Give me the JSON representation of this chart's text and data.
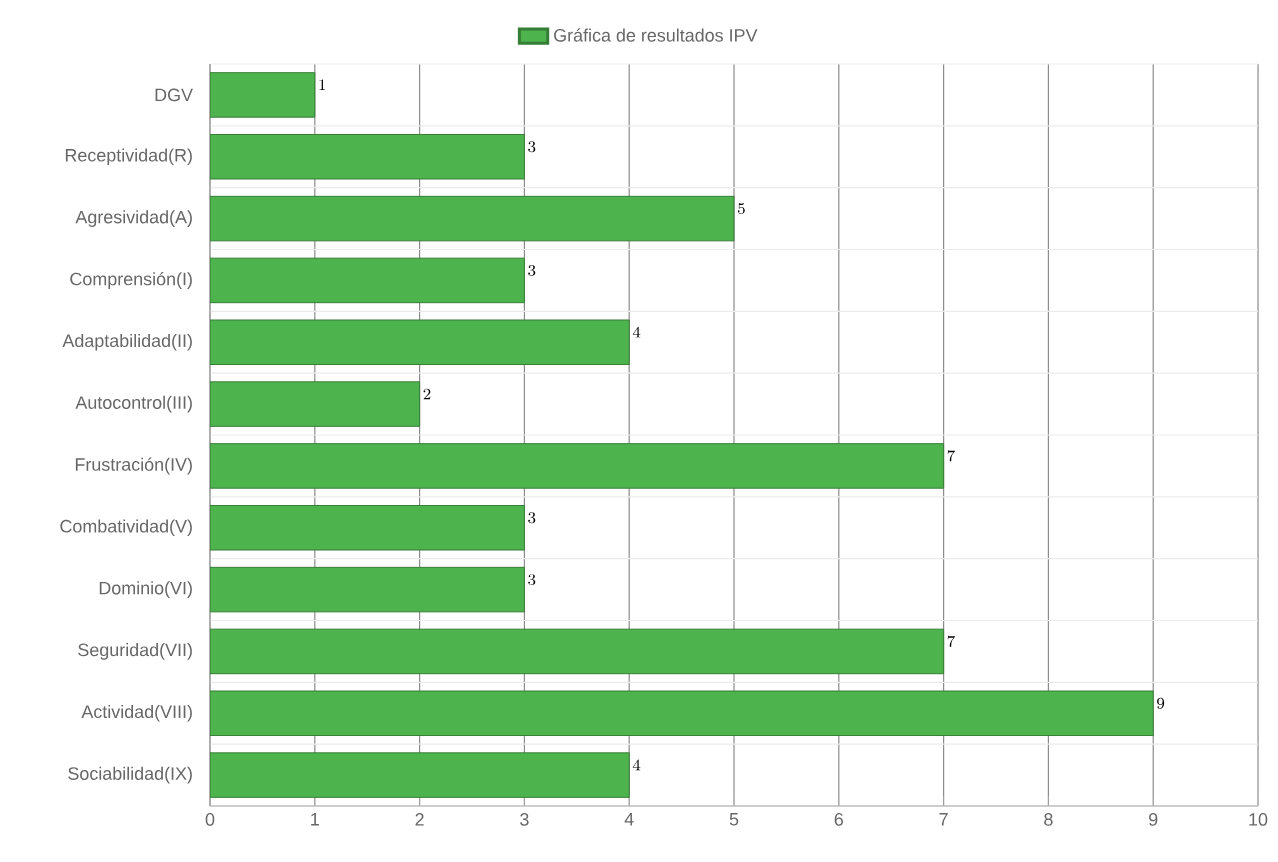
{
  "chart_data": {
    "type": "bar",
    "orientation": "horizontal",
    "categories": [
      "DGV",
      "Receptividad(R)",
      "Agresividad(A)",
      "Comprensión(I)",
      "Adaptabilidad(II)",
      "Autocontrol(III)",
      "Frustración(IV)",
      "Combatividad(V)",
      "Dominio(VI)",
      "Seguridad(VII)",
      "Actividad(VIII)",
      "Sociabilidad(IX)"
    ],
    "series": [
      {
        "name": "Gráfica de resultados IPV",
        "color": "#4db34d",
        "values": [
          1,
          3,
          5,
          3,
          4,
          2,
          7,
          3,
          3,
          7,
          9,
          4
        ]
      }
    ],
    "xlim": [
      0,
      10
    ],
    "xticks": [
      0,
      1,
      2,
      3,
      4,
      5,
      6,
      7,
      8,
      9,
      10
    ],
    "grid": true,
    "legend": "top",
    "data_labels": true
  }
}
